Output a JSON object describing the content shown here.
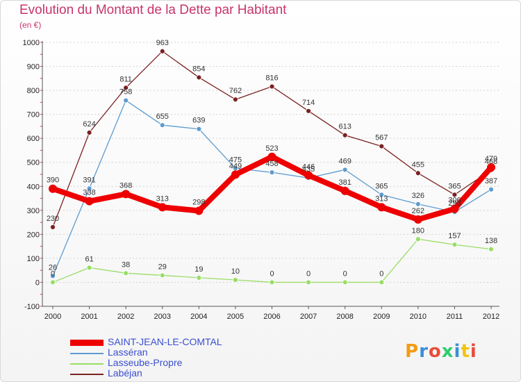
{
  "title": "Evolution du Montant de la Dette par Habitant",
  "unit": "(en €)",
  "brand": "Proxiti",
  "chart_data": {
    "type": "line",
    "title": "Evolution du Montant de la Dette par Habitant",
    "subtitle": "(en €)",
    "xlabel": "",
    "ylabel": "",
    "x": [
      2000,
      2001,
      2002,
      2003,
      2004,
      2005,
      2006,
      2007,
      2008,
      2009,
      2010,
      2011,
      2012
    ],
    "ylim": [
      -100,
      1000
    ],
    "yticks": [
      -100,
      0,
      100,
      200,
      300,
      400,
      500,
      600,
      700,
      800,
      900,
      1000
    ],
    "grid": "horizontal",
    "legend_position": "bottom-left",
    "series": [
      {
        "name": "SAINT-JEAN-LE-COMTAL",
        "color": "#ee0000",
        "values": [
          390,
          338,
          368,
          313,
          298,
          449,
          523,
          446,
          381,
          313,
          262,
          306,
          479
        ]
      },
      {
        "name": "Lasséran",
        "color": "#5d9bd0",
        "values": [
          26,
          391,
          758,
          655,
          639,
          475,
          458,
          435,
          469,
          365,
          326,
          293,
          387
        ]
      },
      {
        "name": "Lasseube-Propre",
        "color": "#99dd66",
        "values": [
          0,
          61,
          38,
          29,
          19,
          10,
          0,
          0,
          0,
          0,
          180,
          157,
          138
        ]
      },
      {
        "name": "Labéjan",
        "color": "#7a2020",
        "values": [
          230,
          624,
          811,
          963,
          854,
          762,
          816,
          714,
          613,
          567,
          455,
          365,
          468
        ]
      }
    ]
  }
}
